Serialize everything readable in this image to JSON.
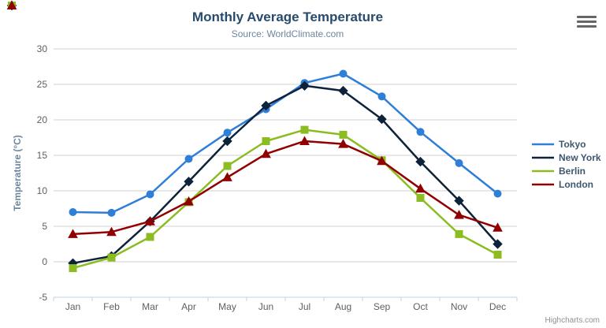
{
  "chart_data": {
    "type": "line",
    "title": "Monthly Average Temperature",
    "subtitle": "Source: WorldClimate.com",
    "xlabel": "",
    "ylabel": "Temperature (°C)",
    "categories": [
      "Jan",
      "Feb",
      "Mar",
      "Apr",
      "May",
      "Jun",
      "Jul",
      "Aug",
      "Sep",
      "Oct",
      "Nov",
      "Dec"
    ],
    "ylim": [
      -5,
      30
    ],
    "yticks": [
      -5,
      0,
      5,
      10,
      15,
      20,
      25,
      30
    ],
    "grid": true,
    "legend_position": "right",
    "series": [
      {
        "name": "Tokyo",
        "color": "#2f7ed8",
        "marker": "circle",
        "values": [
          7.0,
          6.9,
          9.5,
          14.5,
          18.2,
          21.5,
          25.2,
          26.5,
          23.3,
          18.3,
          13.9,
          9.6
        ]
      },
      {
        "name": "New York",
        "color": "#0d233a",
        "marker": "diamond",
        "values": [
          -0.2,
          0.8,
          5.7,
          11.3,
          17.0,
          22.0,
          24.8,
          24.1,
          20.1,
          14.1,
          8.6,
          2.5
        ]
      },
      {
        "name": "Berlin",
        "color": "#8bbc21",
        "marker": "square",
        "values": [
          -0.9,
          0.6,
          3.5,
          8.4,
          13.5,
          17.0,
          18.6,
          17.9,
          14.3,
          9.0,
          3.9,
          1.0
        ]
      },
      {
        "name": "London",
        "color": "#910000",
        "marker": "triangle",
        "values": [
          3.9,
          4.2,
          5.7,
          8.5,
          11.9,
          15.2,
          17.0,
          16.6,
          14.2,
          10.3,
          6.6,
          4.8
        ]
      }
    ],
    "credits": "Highcharts.com"
  },
  "colors": {
    "title": "#274b6d",
    "subtitle": "#6d869f",
    "axis_title": "#6d869f",
    "axis_label": "#606060",
    "grid_line": "#d0d0d0",
    "axis_line": "#c0d0e0",
    "legend_text": "#3e576f",
    "credits": "#909090",
    "background": "#ffffff"
  }
}
